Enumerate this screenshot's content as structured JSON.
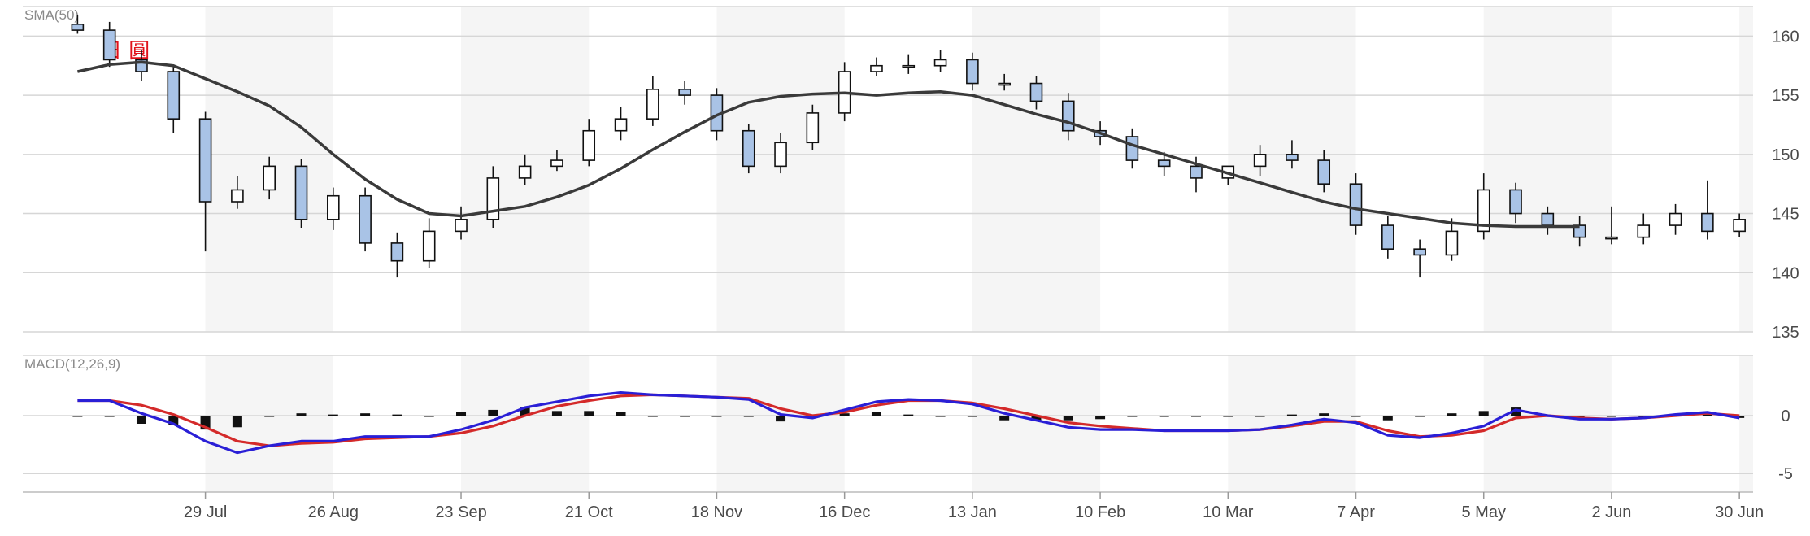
{
  "brand_label": "日 圓",
  "colors": {
    "candle_up_fill": "#ffffff",
    "candle_down_fill": "#a9c3e6",
    "candle_outline": "#111111",
    "sma_line": "#3a3a3a",
    "macd_line": "#2a1fd6",
    "signal_line": "#d42a2a",
    "histogram": "#111111",
    "band": "#f5f5f5"
  },
  "chart_data": [
    {
      "type": "candlestick",
      "title": "SMA(50)",
      "yticks": [
        160,
        155,
        150,
        145,
        140,
        135
      ],
      "ylim": [
        135,
        162.5
      ],
      "grid": true,
      "x": [
        "2024-07-01",
        "2024-07-08",
        "2024-07-15",
        "2024-07-22",
        "2024-07-29",
        "2024-08-05",
        "2024-08-12",
        "2024-08-19",
        "2024-08-26",
        "2024-09-02",
        "2024-09-09",
        "2024-09-16",
        "2024-09-23",
        "2024-09-30",
        "2024-10-07",
        "2024-10-14",
        "2024-10-21",
        "2024-10-28",
        "2024-11-04",
        "2024-11-11",
        "2024-11-18",
        "2024-11-25",
        "2024-12-02",
        "2024-12-09",
        "2024-12-16",
        "2024-12-23",
        "2024-12-30",
        "2025-01-06",
        "2025-01-13",
        "2025-01-20",
        "2025-01-27",
        "2025-02-03",
        "2025-02-10",
        "2025-02-17",
        "2025-02-24",
        "2025-03-03",
        "2025-03-10",
        "2025-03-17",
        "2025-03-24",
        "2025-03-31",
        "2025-04-07",
        "2025-04-14",
        "2025-04-21",
        "2025-04-28",
        "2025-05-05",
        "2025-05-12",
        "2025-05-19",
        "2025-05-26",
        "2025-06-02",
        "2025-06-09",
        "2025-06-16",
        "2025-06-23",
        "2025-06-30"
      ],
      "candles": {
        "open": [
          161.0,
          160.5,
          158.0,
          157.0,
          153.0,
          146.0,
          147.0,
          149.0,
          144.5,
          146.5,
          142.5,
          141.0,
          143.5,
          144.5,
          148.0,
          149.0,
          149.5,
          152.0,
          153.0,
          155.5,
          155.0,
          152.0,
          149.0,
          151.0,
          153.5,
          157.0,
          157.5,
          157.5,
          158.0,
          156.0,
          156.0,
          154.5,
          152.0,
          151.5,
          149.5,
          149.0,
          148.0,
          149.0,
          150.0,
          149.5,
          147.5,
          144.0,
          142.0,
          141.5,
          143.5,
          147.0,
          145.0,
          144.0,
          143.0,
          143.0,
          144.0,
          145.0,
          143.5
        ],
        "close": [
          160.5,
          158.0,
          157.0,
          153.0,
          146.0,
          147.0,
          149.0,
          144.5,
          146.5,
          142.5,
          141.0,
          143.5,
          144.5,
          148.0,
          149.0,
          149.5,
          152.0,
          153.0,
          155.5,
          155.0,
          152.0,
          149.0,
          151.0,
          153.5,
          157.0,
          157.5,
          157.5,
          158.0,
          156.0,
          156.0,
          154.5,
          152.0,
          151.5,
          149.5,
          149.0,
          148.0,
          149.0,
          150.0,
          149.5,
          147.5,
          144.0,
          142.0,
          141.5,
          143.5,
          147.0,
          145.0,
          144.0,
          143.0,
          143.0,
          144.0,
          145.0,
          143.5,
          144.5
        ],
        "high": [
          161.8,
          161.2,
          158.8,
          157.6,
          153.6,
          148.2,
          149.8,
          149.6,
          147.2,
          147.2,
          143.4,
          144.6,
          145.6,
          149.0,
          150.0,
          150.4,
          153.0,
          154.0,
          156.6,
          156.2,
          155.6,
          152.6,
          151.8,
          154.2,
          157.8,
          158.2,
          158.4,
          158.8,
          158.6,
          156.8,
          156.6,
          155.2,
          152.8,
          152.2,
          150.2,
          149.8,
          149.0,
          150.8,
          151.2,
          150.4,
          148.4,
          144.8,
          142.8,
          144.6,
          148.4,
          147.6,
          145.6,
          144.8,
          145.6,
          145.0,
          145.8,
          147.8,
          145.0
        ],
        "low": [
          160.2,
          157.4,
          156.2,
          151.8,
          141.8,
          145.4,
          146.2,
          143.8,
          143.6,
          141.8,
          139.6,
          140.4,
          142.8,
          143.8,
          147.4,
          148.6,
          149.0,
          151.2,
          152.4,
          154.2,
          151.2,
          148.4,
          148.4,
          150.4,
          152.8,
          156.6,
          156.8,
          157.0,
          155.4,
          155.4,
          153.8,
          151.2,
          150.8,
          148.8,
          148.2,
          146.8,
          147.4,
          148.2,
          148.8,
          146.8,
          143.2,
          141.2,
          139.6,
          141.0,
          142.8,
          144.2,
          143.2,
          142.2,
          142.4,
          142.4,
          143.2,
          142.8,
          143.0
        ]
      },
      "overlays": [
        {
          "name": "SMA(50)",
          "values": [
            157.0,
            157.6,
            157.8,
            157.5,
            156.4,
            155.3,
            154.1,
            152.3,
            150.0,
            147.9,
            146.2,
            145.0,
            144.8,
            145.2,
            145.6,
            146.4,
            147.4,
            148.8,
            150.4,
            151.9,
            153.3,
            154.4,
            154.9,
            155.1,
            155.2,
            155.0,
            155.2,
            155.3,
            155.0,
            154.2,
            153.4,
            152.7,
            151.8,
            150.8,
            150.0,
            149.2,
            148.4,
            147.6,
            146.8,
            146.0,
            145.4,
            145.0,
            144.6,
            144.2,
            144.0,
            143.9,
            143.9,
            143.9
          ]
        },
        {
          "name": "",
          "values": []
        }
      ]
    },
    {
      "type": "line",
      "title": "MACD(12,26,9)",
      "yticks": [
        0,
        -5
      ],
      "ylim": [
        -6.6,
        5.2
      ],
      "grid": true,
      "x": [
        "2024-07-01",
        "2024-07-08",
        "2024-07-15",
        "2024-07-22",
        "2024-07-29",
        "2024-08-05",
        "2024-08-12",
        "2024-08-19",
        "2024-08-26",
        "2024-09-02",
        "2024-09-09",
        "2024-09-16",
        "2024-09-23",
        "2024-09-30",
        "2024-10-07",
        "2024-10-14",
        "2024-10-21",
        "2024-10-28",
        "2024-11-04",
        "2024-11-11",
        "2024-11-18",
        "2024-11-25",
        "2024-12-02",
        "2024-12-09",
        "2024-12-16",
        "2024-12-23",
        "2024-12-30",
        "2025-01-06",
        "2025-01-13",
        "2025-01-20",
        "2025-01-27",
        "2025-02-03",
        "2025-02-10",
        "2025-02-17",
        "2025-02-24",
        "2025-03-03",
        "2025-03-10",
        "2025-03-17",
        "2025-03-24",
        "2025-03-31",
        "2025-04-07",
        "2025-04-14",
        "2025-04-21",
        "2025-04-28",
        "2025-05-05",
        "2025-05-12",
        "2025-05-19",
        "2025-05-26",
        "2025-06-02",
        "2025-06-09",
        "2025-06-16",
        "2025-06-23",
        "2025-06-30"
      ],
      "series": [
        {
          "name": "MACD",
          "values": [
            1.3,
            1.3,
            0.2,
            -0.7,
            -2.2,
            -3.2,
            -2.6,
            -2.2,
            -2.2,
            -1.8,
            -1.8,
            -1.8,
            -1.2,
            -0.4,
            0.7,
            1.2,
            1.7,
            2.0,
            1.8,
            1.7,
            1.6,
            1.4,
            0.1,
            -0.2,
            0.5,
            1.2,
            1.4,
            1.3,
            1.0,
            0.2,
            -0.4,
            -1.0,
            -1.2,
            -1.2,
            -1.3,
            -1.3,
            -1.3,
            -1.2,
            -0.8,
            -0.3,
            -0.6,
            -1.7,
            -1.9,
            -1.5,
            -0.9,
            0.5,
            0.0,
            -0.3,
            -0.3,
            -0.2,
            0.1,
            0.3,
            -0.2
          ]
        },
        {
          "name": "Signal",
          "values": [
            1.3,
            1.3,
            0.9,
            0.1,
            -1.0,
            -2.2,
            -2.6,
            -2.4,
            -2.3,
            -2.0,
            -1.9,
            -1.8,
            -1.5,
            -0.9,
            0.0,
            0.8,
            1.3,
            1.7,
            1.8,
            1.7,
            1.6,
            1.5,
            0.6,
            0.0,
            0.3,
            0.9,
            1.3,
            1.3,
            1.1,
            0.6,
            0.0,
            -0.6,
            -0.9,
            -1.1,
            -1.3,
            -1.3,
            -1.3,
            -1.2,
            -0.9,
            -0.5,
            -0.5,
            -1.3,
            -1.8,
            -1.7,
            -1.3,
            -0.2,
            0.0,
            -0.2,
            -0.3,
            -0.2,
            0.0,
            0.2,
            0.0
          ]
        },
        {
          "name": "Histogram",
          "values": [
            0.0,
            0.0,
            -0.7,
            -0.8,
            -1.2,
            -1.0,
            0.0,
            0.2,
            0.1,
            0.2,
            0.1,
            0.0,
            0.3,
            0.5,
            0.7,
            0.4,
            0.4,
            0.3,
            0.0,
            0.0,
            0.0,
            -0.1,
            -0.5,
            -0.2,
            0.2,
            0.3,
            0.1,
            0.0,
            -0.1,
            -0.4,
            -0.4,
            -0.4,
            -0.3,
            -0.1,
            0.0,
            0.0,
            0.0,
            0.0,
            0.1,
            0.2,
            -0.1,
            -0.4,
            -0.1,
            0.2,
            0.4,
            0.7,
            0.0,
            -0.1,
            0.0,
            0.0,
            0.1,
            0.1,
            -0.2
          ]
        }
      ]
    }
  ],
  "x_axis": {
    "tick_labels": [
      "29 Jul",
      "26 Aug",
      "23 Sep",
      "21 Oct",
      "18 Nov",
      "16 Dec",
      "13 Jan",
      "10 Feb",
      "10 Mar",
      "7 Apr",
      "5 May",
      "2 Jun",
      "30 Jun"
    ],
    "tick_dates": [
      "2024-07-29",
      "2024-08-26",
      "2024-09-23",
      "2024-10-21",
      "2024-11-18",
      "2024-12-16",
      "2025-01-13",
      "2025-02-10",
      "2025-03-10",
      "2025-04-07",
      "2025-05-05",
      "2025-06-02",
      "2025-06-30"
    ]
  }
}
